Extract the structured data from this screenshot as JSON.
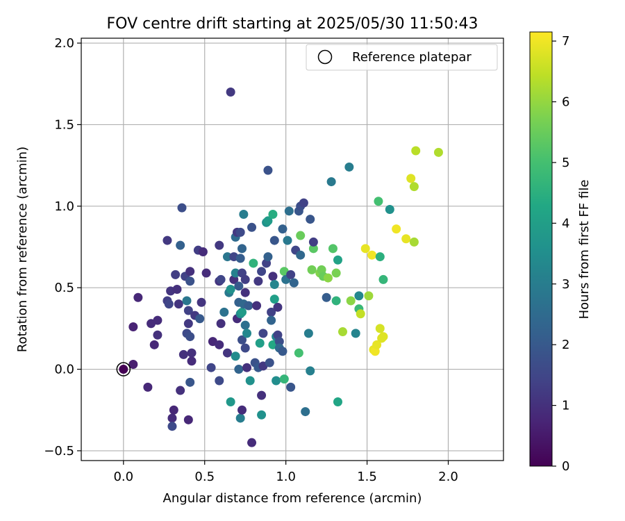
{
  "chart_data": {
    "type": "scatter",
    "title": "FOV centre drift starting at 2025/05/30 11:50:43",
    "xlabel": "Angular distance from reference (arcmin)",
    "ylabel": "Rotation from reference (arcmin)",
    "xlim": [
      -0.26,
      2.34
    ],
    "ylim": [
      -0.56,
      2.03
    ],
    "xticks": [
      "0.0",
      "0.5",
      "1.0",
      "1.5",
      "2.0"
    ],
    "yticks": [
      "−0.5",
      "0.0",
      "0.5",
      "1.0",
      "1.5",
      "2.0"
    ],
    "grid": true,
    "legend": {
      "placement": "top-right",
      "entries": [
        "Reference platepar"
      ]
    },
    "reference_point": {
      "x": 0.0,
      "y": 0.0
    },
    "colorbar": {
      "label": "Hours from first FF file",
      "range": [
        0,
        7.15
      ],
      "ticks": [
        "0",
        "1",
        "2",
        "3",
        "4",
        "5",
        "6",
        "7"
      ],
      "colormap": "viridis"
    },
    "series": [
      {
        "points": [
          {
            "x": 0.0,
            "y": 0.0,
            "t": 0.0
          },
          {
            "x": 0.06,
            "y": 0.03,
            "t": 0.6
          },
          {
            "x": 0.06,
            "y": 0.26,
            "t": 0.7
          },
          {
            "x": 0.09,
            "y": 0.44,
            "t": 0.8
          },
          {
            "x": 0.15,
            "y": -0.11,
            "t": 0.8
          },
          {
            "x": 0.17,
            "y": 0.28,
            "t": 0.9
          },
          {
            "x": 0.19,
            "y": 0.15,
            "t": 0.8
          },
          {
            "x": 0.21,
            "y": 0.21,
            "t": 1.0
          },
          {
            "x": 0.21,
            "y": 0.3,
            "t": 0.9
          },
          {
            "x": 0.27,
            "y": 0.79,
            "t": 1.2
          },
          {
            "x": 0.27,
            "y": 0.42,
            "t": 1.3
          },
          {
            "x": 0.28,
            "y": 0.4,
            "t": 1.5
          },
          {
            "x": 0.29,
            "y": 0.48,
            "t": 1.1
          },
          {
            "x": 0.3,
            "y": -0.3,
            "t": 0.9
          },
          {
            "x": 0.3,
            "y": -0.35,
            "t": 1.6
          },
          {
            "x": 0.31,
            "y": -0.25,
            "t": 0.8
          },
          {
            "x": 0.32,
            "y": 0.58,
            "t": 1.3
          },
          {
            "x": 0.33,
            "y": 0.49,
            "t": 1.0
          },
          {
            "x": 0.34,
            "y": 0.4,
            "t": 1.1
          },
          {
            "x": 0.35,
            "y": 0.76,
            "t": 2.2
          },
          {
            "x": 0.35,
            "y": -0.13,
            "t": 1.0
          },
          {
            "x": 0.36,
            "y": 0.99,
            "t": 1.7
          },
          {
            "x": 0.37,
            "y": 0.09,
            "t": 1.0
          },
          {
            "x": 0.38,
            "y": 0.57,
            "t": 1.4
          },
          {
            "x": 0.39,
            "y": 0.42,
            "t": 2.8
          },
          {
            "x": 0.39,
            "y": 0.22,
            "t": 1.6
          },
          {
            "x": 0.4,
            "y": 0.28,
            "t": 1.2
          },
          {
            "x": 0.4,
            "y": 0.36,
            "t": 1.4
          },
          {
            "x": 0.41,
            "y": 0.6,
            "t": 1.0
          },
          {
            "x": 0.41,
            "y": 0.54,
            "t": 1.8
          },
          {
            "x": 0.41,
            "y": 0.2,
            "t": 1.7
          },
          {
            "x": 0.42,
            "y": 0.1,
            "t": 1.0
          },
          {
            "x": 0.42,
            "y": 0.05,
            "t": 0.9
          },
          {
            "x": 0.4,
            "y": -0.31,
            "t": 0.8
          },
          {
            "x": 0.41,
            "y": -0.08,
            "t": 1.9
          },
          {
            "x": 0.44,
            "y": 0.33,
            "t": 1.2
          },
          {
            "x": 0.46,
            "y": 0.73,
            "t": 1.3
          },
          {
            "x": 0.47,
            "y": 0.31,
            "t": 2.0
          },
          {
            "x": 0.49,
            "y": 0.72,
            "t": 0.9
          },
          {
            "x": 0.48,
            "y": 0.41,
            "t": 1.1
          },
          {
            "x": 0.51,
            "y": 0.59,
            "t": 0.9
          },
          {
            "x": 0.54,
            "y": 0.01,
            "t": 1.5
          },
          {
            "x": 0.55,
            "y": 0.17,
            "t": 0.8
          },
          {
            "x": 0.59,
            "y": 0.15,
            "t": 0.9
          },
          {
            "x": 0.59,
            "y": 0.76,
            "t": 1.2
          },
          {
            "x": 0.59,
            "y": 0.54,
            "t": 1.1
          },
          {
            "x": 0.6,
            "y": 0.28,
            "t": 1.0
          },
          {
            "x": 0.6,
            "y": 0.55,
            "t": 1.5
          },
          {
            "x": 0.59,
            "y": -0.07,
            "t": 1.6
          },
          {
            "x": 0.62,
            "y": 0.35,
            "t": 2.7
          },
          {
            "x": 0.64,
            "y": 0.1,
            "t": 1.1
          },
          {
            "x": 0.64,
            "y": 0.69,
            "t": 2.8
          },
          {
            "x": 0.65,
            "y": 0.47,
            "t": 2.9
          },
          {
            "x": 0.66,
            "y": 1.7,
            "t": 1.2
          },
          {
            "x": 0.66,
            "y": 0.49,
            "t": 3.6
          },
          {
            "x": 0.66,
            "y": -0.2,
            "t": 3.8
          },
          {
            "x": 0.68,
            "y": 0.69,
            "t": 1.5
          },
          {
            "x": 0.68,
            "y": 0.55,
            "t": 1.0
          },
          {
            "x": 0.69,
            "y": 0.81,
            "t": 2.5
          },
          {
            "x": 0.69,
            "y": 0.59,
            "t": 3.1
          },
          {
            "x": 0.69,
            "y": 0.08,
            "t": 3.4
          },
          {
            "x": 0.7,
            "y": 0.84,
            "t": 1.2
          },
          {
            "x": 0.7,
            "y": 0.31,
            "t": 0.9
          },
          {
            "x": 0.71,
            "y": 0.51,
            "t": 2.0
          },
          {
            "x": 0.71,
            "y": 0.41,
            "t": 2.2
          },
          {
            "x": 0.71,
            "y": -0.0,
            "t": 2.3
          },
          {
            "x": 0.72,
            "y": 0.84,
            "t": 1.6
          },
          {
            "x": 0.72,
            "y": 0.68,
            "t": 2.1
          },
          {
            "x": 0.72,
            "y": 0.34,
            "t": 3.4
          },
          {
            "x": 0.72,
            "y": -0.3,
            "t": 3.0
          },
          {
            "x": 0.73,
            "y": 0.74,
            "t": 2.3
          },
          {
            "x": 0.73,
            "y": 0.59,
            "t": 1.4
          },
          {
            "x": 0.73,
            "y": 0.35,
            "t": 3.9
          },
          {
            "x": 0.73,
            "y": 0.18,
            "t": 1.7
          },
          {
            "x": 0.73,
            "y": -0.25,
            "t": 0.9
          },
          {
            "x": 0.74,
            "y": 0.95,
            "t": 3.0
          },
          {
            "x": 0.74,
            "y": 0.4,
            "t": 2.4
          },
          {
            "x": 0.75,
            "y": 0.55,
            "t": 1.3
          },
          {
            "x": 0.75,
            "y": 0.47,
            "t": 1.0
          },
          {
            "x": 0.75,
            "y": 0.27,
            "t": 2.6
          },
          {
            "x": 0.75,
            "y": 0.13,
            "t": 1.6
          },
          {
            "x": 0.76,
            "y": 0.01,
            "t": 1.0
          },
          {
            "x": 0.76,
            "y": 0.22,
            "t": 3.3
          },
          {
            "x": 0.77,
            "y": 0.39,
            "t": 2.1
          },
          {
            "x": 0.79,
            "y": -0.45,
            "t": 0.9
          },
          {
            "x": 0.79,
            "y": 0.87,
            "t": 1.8
          },
          {
            "x": 0.78,
            "y": -0.07,
            "t": 3.6
          },
          {
            "x": 0.8,
            "y": 0.65,
            "t": 4.6
          },
          {
            "x": 0.81,
            "y": 0.04,
            "t": 1.8
          },
          {
            "x": 0.82,
            "y": 0.39,
            "t": 1.0
          },
          {
            "x": 0.83,
            "y": 0.01,
            "t": 2.0
          },
          {
            "x": 0.83,
            "y": 0.54,
            "t": 1.2
          },
          {
            "x": 0.84,
            "y": 0.16,
            "t": 4.0
          },
          {
            "x": 0.85,
            "y": 0.6,
            "t": 1.5
          },
          {
            "x": 0.85,
            "y": -0.16,
            "t": 1.0
          },
          {
            "x": 0.85,
            "y": -0.28,
            "t": 3.6
          },
          {
            "x": 0.86,
            "y": 0.02,
            "t": 1.2
          },
          {
            "x": 0.86,
            "y": 0.22,
            "t": 1.5
          },
          {
            "x": 0.88,
            "y": 0.9,
            "t": 3.6
          },
          {
            "x": 0.88,
            "y": 0.65,
            "t": 1.4
          },
          {
            "x": 0.89,
            "y": 1.22,
            "t": 1.8
          },
          {
            "x": 0.89,
            "y": 0.91,
            "t": 3.9
          },
          {
            "x": 0.89,
            "y": 0.69,
            "t": 2.2
          },
          {
            "x": 0.9,
            "y": 0.04,
            "t": 1.8
          },
          {
            "x": 0.91,
            "y": 0.35,
            "t": 1.4
          },
          {
            "x": 0.91,
            "y": 0.3,
            "t": 2.3
          },
          {
            "x": 0.92,
            "y": 0.57,
            "t": 1.0
          },
          {
            "x": 0.92,
            "y": 0.15,
            "t": 4.3
          },
          {
            "x": 0.92,
            "y": 0.95,
            "t": 4.4
          },
          {
            "x": 0.93,
            "y": 0.79,
            "t": 1.9
          },
          {
            "x": 0.93,
            "y": 0.52,
            "t": 3.2
          },
          {
            "x": 0.93,
            "y": 0.43,
            "t": 4.0
          },
          {
            "x": 0.94,
            "y": 0.2,
            "t": 3.3
          },
          {
            "x": 0.94,
            "y": -0.07,
            "t": 3.5
          },
          {
            "x": 0.95,
            "y": 0.38,
            "t": 1.1
          },
          {
            "x": 0.95,
            "y": 0.21,
            "t": 1.4
          },
          {
            "x": 0.96,
            "y": 0.17,
            "t": 1.7
          },
          {
            "x": 0.96,
            "y": 0.13,
            "t": 2.4
          },
          {
            "x": 0.98,
            "y": 0.11,
            "t": 2.0
          },
          {
            "x": 0.98,
            "y": 0.86,
            "t": 2.2
          },
          {
            "x": 0.99,
            "y": 0.6,
            "t": 5.3
          },
          {
            "x": 0.99,
            "y": -0.06,
            "t": 4.7
          },
          {
            "x": 1.0,
            "y": 0.55,
            "t": 2.7
          },
          {
            "x": 1.01,
            "y": 0.79,
            "t": 2.9
          },
          {
            "x": 1.02,
            "y": 0.97,
            "t": 2.6
          },
          {
            "x": 1.03,
            "y": 0.58,
            "t": 1.4
          },
          {
            "x": 1.03,
            "y": -0.11,
            "t": 1.9
          },
          {
            "x": 1.05,
            "y": 0.53,
            "t": 2.3
          },
          {
            "x": 1.06,
            "y": 0.73,
            "t": 1.5
          },
          {
            "x": 1.08,
            "y": 0.97,
            "t": 1.9
          },
          {
            "x": 1.08,
            "y": 0.1,
            "t": 5.0
          },
          {
            "x": 1.09,
            "y": 0.82,
            "t": 5.5
          },
          {
            "x": 1.09,
            "y": 0.7,
            "t": 2.4
          },
          {
            "x": 1.09,
            "y": 1.0,
            "t": 1.7
          },
          {
            "x": 1.11,
            "y": 1.02,
            "t": 1.4
          },
          {
            "x": 1.12,
            "y": -0.26,
            "t": 2.6
          },
          {
            "x": 1.14,
            "y": 0.22,
            "t": 3.0
          },
          {
            "x": 1.15,
            "y": -0.01,
            "t": 3.1
          },
          {
            "x": 1.15,
            "y": 0.92,
            "t": 1.9
          },
          {
            "x": 1.16,
            "y": 0.61,
            "t": 5.6
          },
          {
            "x": 1.17,
            "y": 0.74,
            "t": 5.3
          },
          {
            "x": 1.17,
            "y": 0.78,
            "t": 1.3
          },
          {
            "x": 1.21,
            "y": 0.59,
            "t": 5.8
          },
          {
            "x": 1.22,
            "y": 0.61,
            "t": 5.6
          },
          {
            "x": 1.23,
            "y": 0.57,
            "t": 5.5
          },
          {
            "x": 1.25,
            "y": 0.44,
            "t": 2.1
          },
          {
            "x": 1.26,
            "y": 0.56,
            "t": 5.9
          },
          {
            "x": 1.28,
            "y": 1.15,
            "t": 2.9
          },
          {
            "x": 1.29,
            "y": 0.74,
            "t": 5.2
          },
          {
            "x": 1.31,
            "y": 0.42,
            "t": 4.6
          },
          {
            "x": 1.31,
            "y": 0.59,
            "t": 5.7
          },
          {
            "x": 1.32,
            "y": 0.67,
            "t": 4.1
          },
          {
            "x": 1.32,
            "y": -0.2,
            "t": 4.2
          },
          {
            "x": 1.35,
            "y": 0.23,
            "t": 6.2
          },
          {
            "x": 1.39,
            "y": 1.24,
            "t": 3.0
          },
          {
            "x": 1.4,
            "y": 0.42,
            "t": 5.9
          },
          {
            "x": 1.43,
            "y": 0.22,
            "t": 3.2
          },
          {
            "x": 1.45,
            "y": 0.45,
            "t": 3.3
          },
          {
            "x": 1.45,
            "y": 0.37,
            "t": 4.8
          },
          {
            "x": 1.46,
            "y": 0.34,
            "t": 6.5
          },
          {
            "x": 1.49,
            "y": 0.74,
            "t": 6.9
          },
          {
            "x": 1.51,
            "y": 0.45,
            "t": 6.1
          },
          {
            "x": 1.53,
            "y": 0.7,
            "t": 7.0
          },
          {
            "x": 1.54,
            "y": 0.12,
            "t": 6.9
          },
          {
            "x": 1.55,
            "y": 0.11,
            "t": 7.0
          },
          {
            "x": 1.56,
            "y": 0.15,
            "t": 6.9
          },
          {
            "x": 1.57,
            "y": 1.03,
            "t": 5.0
          },
          {
            "x": 1.58,
            "y": 0.69,
            "t": 4.5
          },
          {
            "x": 1.58,
            "y": 0.25,
            "t": 6.7
          },
          {
            "x": 1.59,
            "y": 0.19,
            "t": 6.8
          },
          {
            "x": 1.6,
            "y": 0.2,
            "t": 6.8
          },
          {
            "x": 1.6,
            "y": 0.55,
            "t": 4.7
          },
          {
            "x": 1.64,
            "y": 0.98,
            "t": 3.6
          },
          {
            "x": 1.68,
            "y": 0.86,
            "t": 7.0
          },
          {
            "x": 1.74,
            "y": 0.8,
            "t": 6.9
          },
          {
            "x": 1.77,
            "y": 1.17,
            "t": 6.8
          },
          {
            "x": 1.79,
            "y": 1.12,
            "t": 6.3
          },
          {
            "x": 1.79,
            "y": 0.78,
            "t": 6.2
          },
          {
            "x": 1.8,
            "y": 1.34,
            "t": 6.4
          },
          {
            "x": 1.94,
            "y": 1.33,
            "t": 6.3
          }
        ]
      }
    ]
  }
}
